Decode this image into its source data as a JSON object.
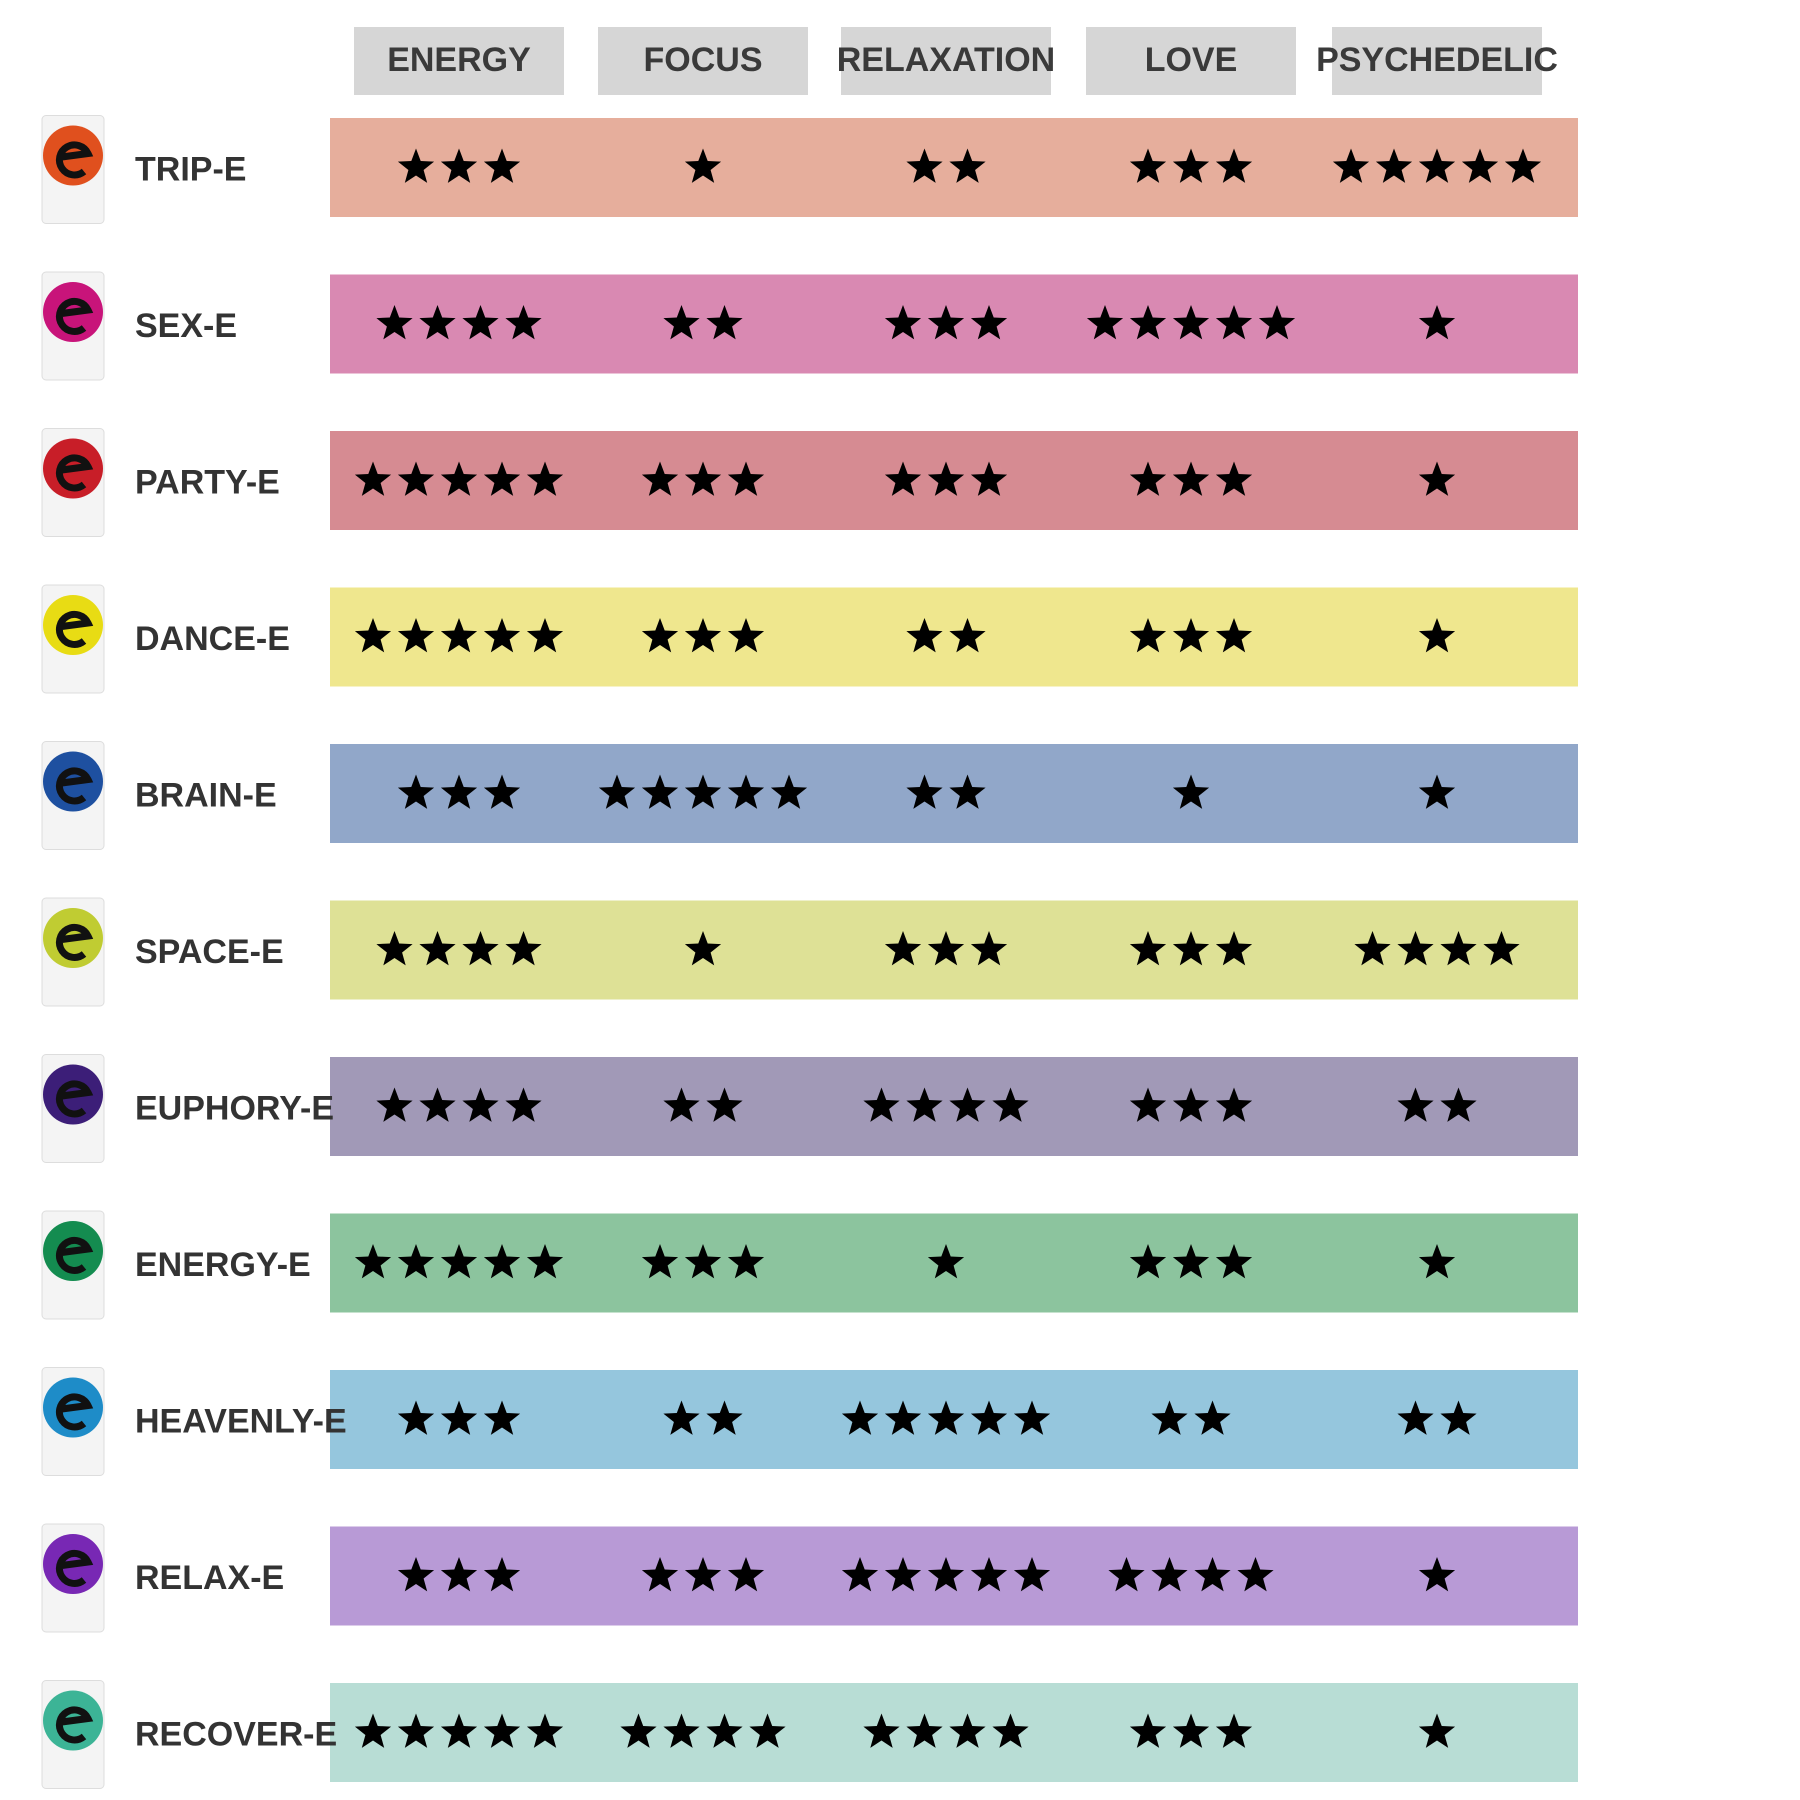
{
  "columns": [
    "ENERGY",
    "FOCUS",
    "RELAXATION",
    "LOVE",
    "PSYCHEDELIC"
  ],
  "rows": [
    {
      "name": "TRIP-E",
      "color": "#e6ae9c",
      "icon_color": "#e0501e",
      "ratings": [
        3,
        1,
        2,
        3,
        5
      ]
    },
    {
      "name": "SEX-E",
      "color": "#d989b2",
      "icon_color": "#c8147a",
      "ratings": [
        4,
        2,
        3,
        5,
        1
      ]
    },
    {
      "name": "PARTY-E",
      "color": "#d68b92",
      "icon_color": "#c81e28",
      "ratings": [
        5,
        3,
        3,
        3,
        1
      ]
    },
    {
      "name": "DANCE-E",
      "color": "#efe78e",
      "icon_color": "#e8dc14",
      "ratings": [
        5,
        3,
        2,
        3,
        1
      ]
    },
    {
      "name": "BRAIN-E",
      "color": "#91a7c9",
      "icon_color": "#1e50a0",
      "ratings": [
        3,
        5,
        2,
        1,
        1
      ]
    },
    {
      "name": "SPACE-E",
      "color": "#dee196",
      "icon_color": "#c0cc32",
      "ratings": [
        4,
        1,
        3,
        3,
        4
      ]
    },
    {
      "name": "EUPHORY-E",
      "color": "#a199b7",
      "icon_color": "#3c1e78",
      "ratings": [
        4,
        2,
        4,
        3,
        2
      ]
    },
    {
      "name": "ENERGY-E",
      "color": "#8cc49e",
      "icon_color": "#148c50",
      "ratings": [
        5,
        3,
        1,
        3,
        1
      ]
    },
    {
      "name": "HEAVENLY-E",
      "color": "#95c6dd",
      "icon_color": "#1e8cc8",
      "ratings": [
        3,
        2,
        5,
        2,
        2
      ]
    },
    {
      "name": "RELAX-E",
      "color": "#b89ad6",
      "icon_color": "#7828b4",
      "ratings": [
        3,
        3,
        5,
        4,
        1
      ]
    },
    {
      "name": "RECOVER-E",
      "color": "#b8ddd5",
      "icon_color": "#3cb496",
      "ratings": [
        5,
        4,
        4,
        3,
        1
      ]
    }
  ]
}
